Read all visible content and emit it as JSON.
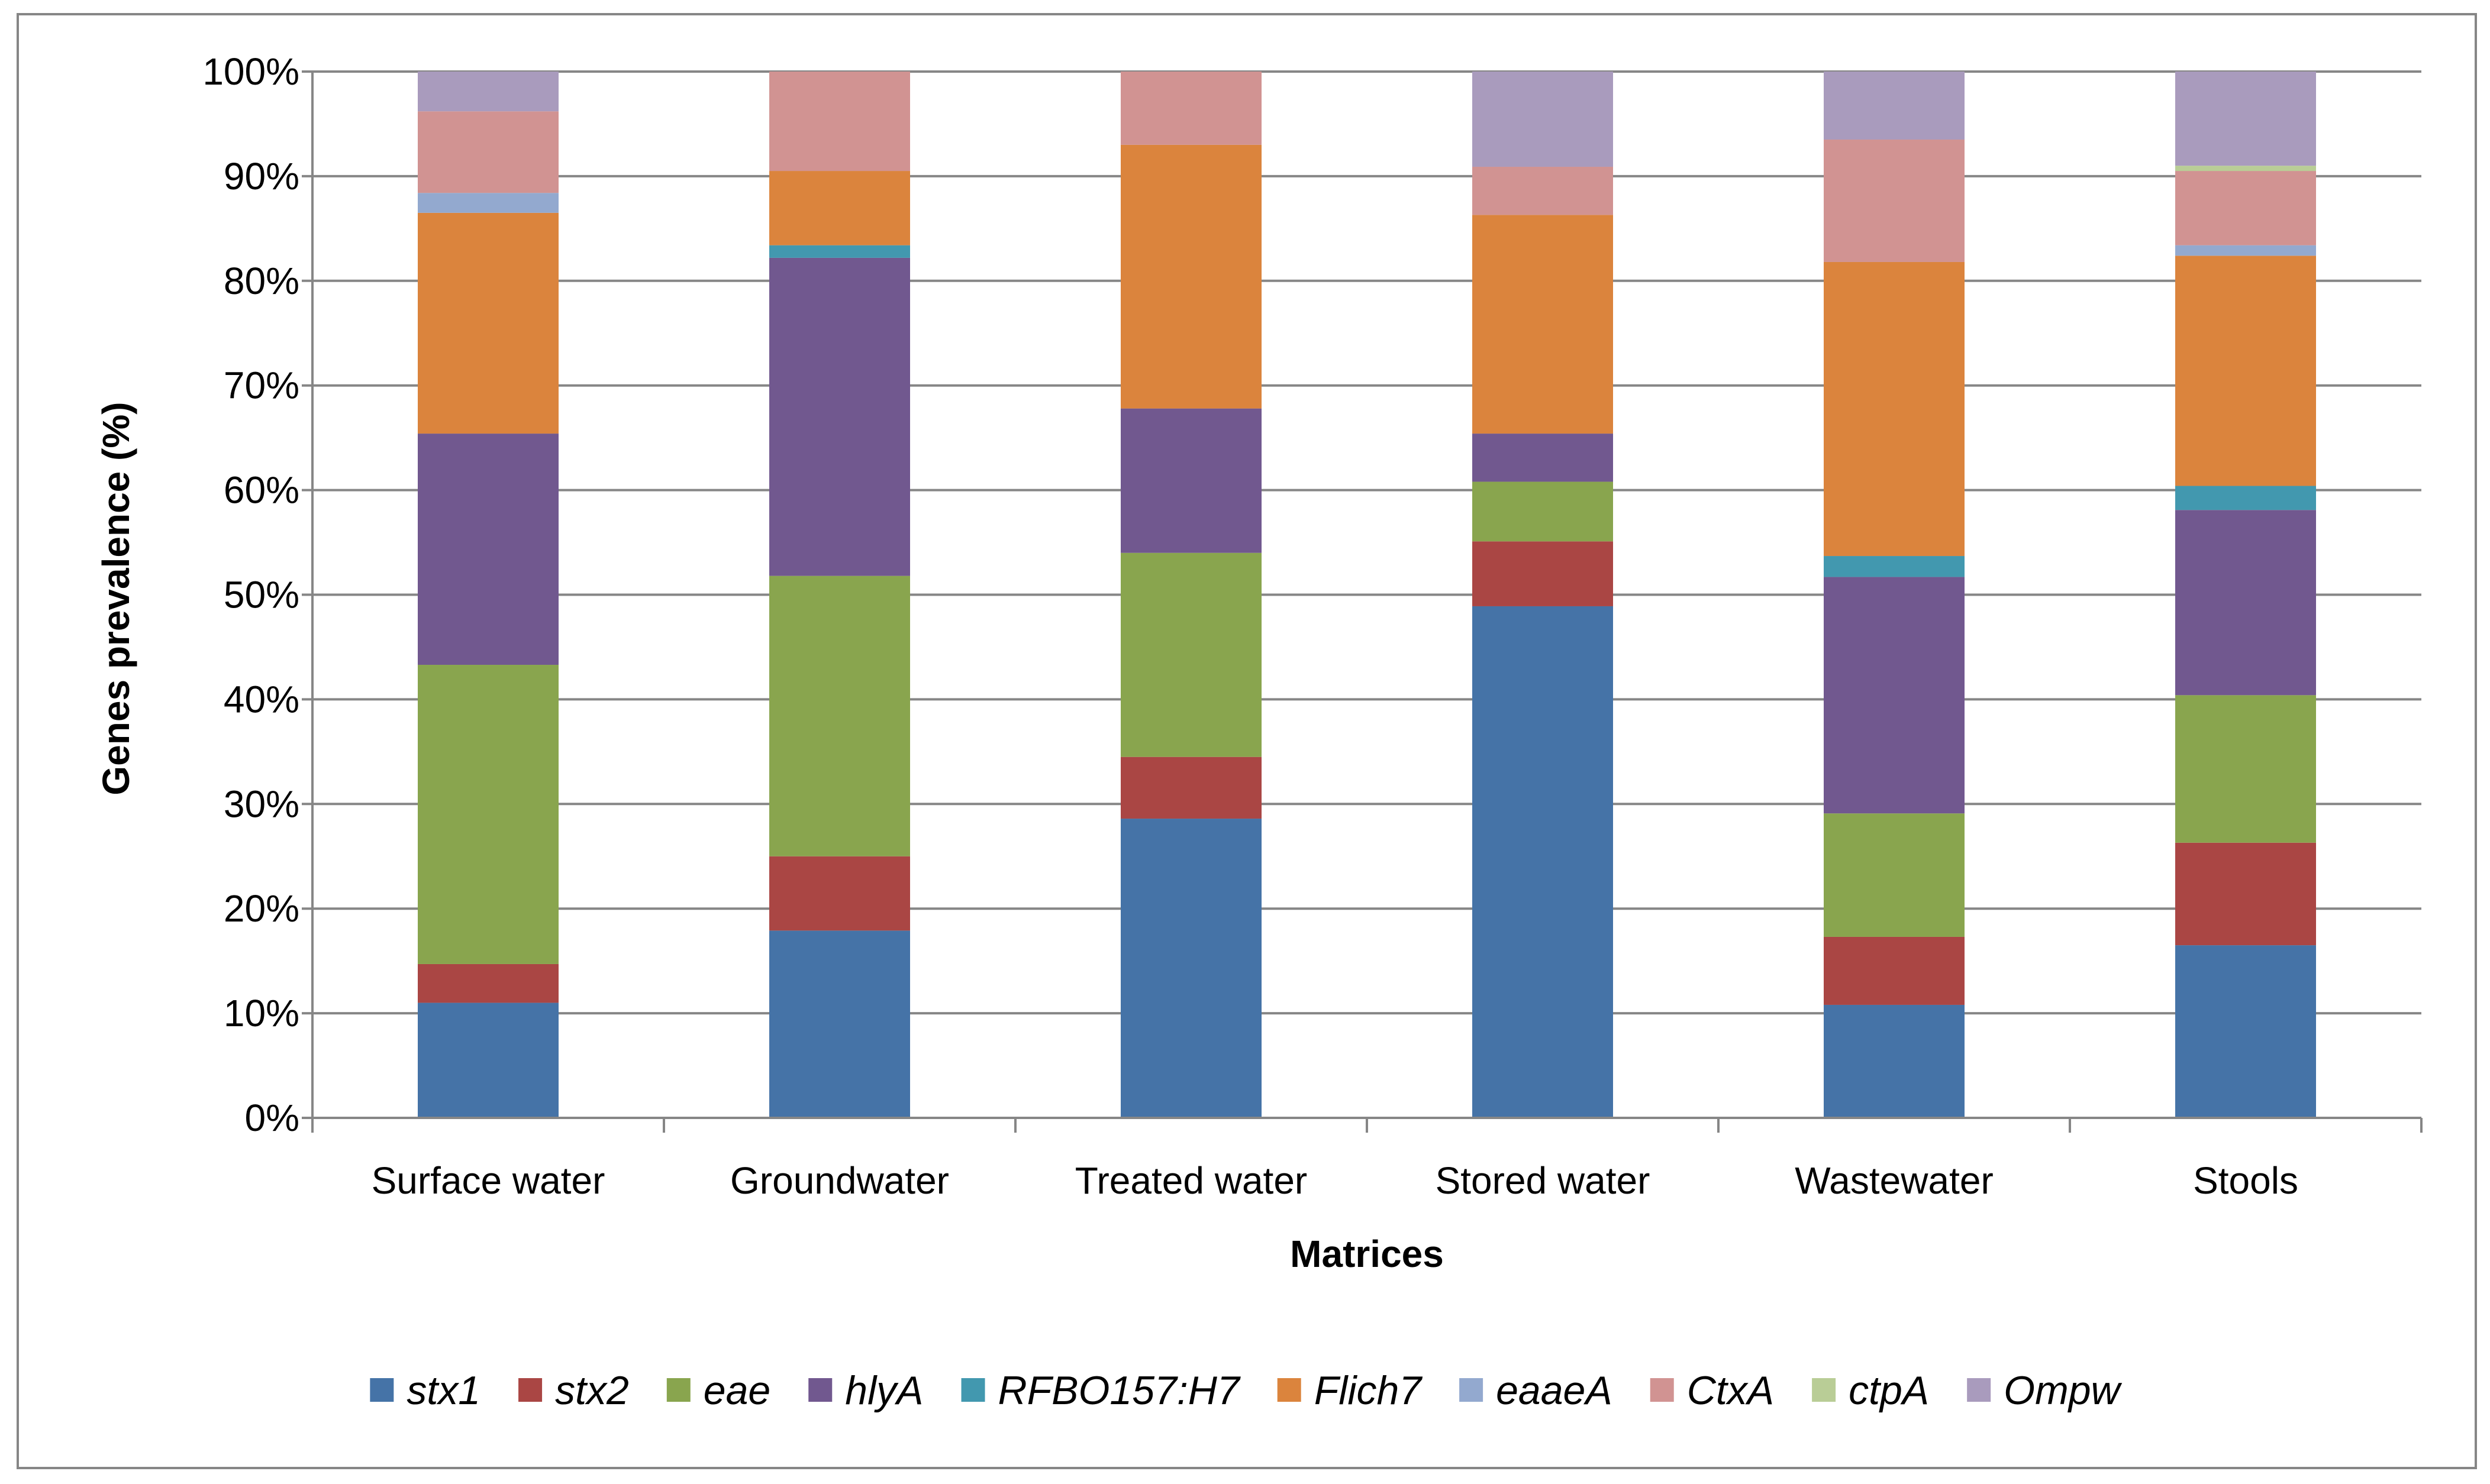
{
  "chart_data": {
    "type": "bar",
    "stacked": true,
    "percent": true,
    "title": "",
    "xlabel": "Matrices",
    "ylabel": "Genes prevalence (%)",
    "ylim": [
      0,
      100
    ],
    "yticks": [
      "0%",
      "10%",
      "20%",
      "30%",
      "40%",
      "50%",
      "60%",
      "70%",
      "80%",
      "90%",
      "100%"
    ],
    "grid": true,
    "legend_position": "bottom",
    "categories": [
      "Surface water",
      "Groundwater",
      "Treated water",
      "Stored water",
      "Wastewater",
      "Stools"
    ],
    "series": [
      {
        "name": "stx1",
        "color": "#4573A7",
        "values": [
          11.0,
          17.9,
          28.6,
          48.9,
          10.8,
          16.5
        ]
      },
      {
        "name": "stx2",
        "color": "#AA4644",
        "values": [
          3.7,
          7.1,
          5.9,
          6.2,
          6.5,
          9.8
        ]
      },
      {
        "name": "eae",
        "color": "#89A54E",
        "values": [
          28.6,
          26.8,
          19.5,
          5.7,
          11.8,
          14.1
        ]
      },
      {
        "name": "hlyA",
        "color": "#71588F",
        "values": [
          22.1,
          30.4,
          13.8,
          4.6,
          22.6,
          17.7
        ]
      },
      {
        "name": "RFBO157:H7",
        "color": "#4298AF",
        "values": [
          0,
          1.2,
          0,
          0,
          2.0,
          2.3
        ]
      },
      {
        "name": "Flich7",
        "color": "#DB843D",
        "values": [
          21.1,
          7.1,
          25.2,
          20.9,
          28.1,
          22.0
        ]
      },
      {
        "name": "eaaeA",
        "color": "#93A9CF",
        "values": [
          1.9,
          0,
          0,
          0,
          0,
          1.0
        ]
      },
      {
        "name": "CtxA",
        "color": "#D19392",
        "values": [
          7.8,
          9.5,
          7.0,
          4.6,
          11.7,
          7.1
        ]
      },
      {
        "name": "ctpA",
        "color": "#B9CD96",
        "values": [
          0,
          0,
          0,
          0,
          0,
          0.5
        ]
      },
      {
        "name": "Ompw",
        "color": "#A99BBD",
        "values": [
          3.8,
          0,
          0,
          9.1,
          6.5,
          9.0
        ]
      }
    ]
  }
}
